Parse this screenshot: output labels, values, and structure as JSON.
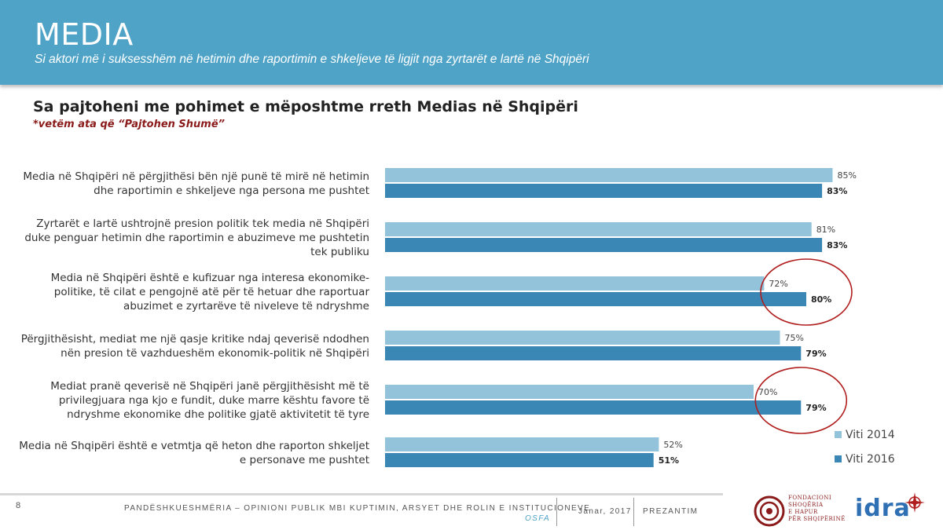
{
  "header": {
    "title": "MEDIA",
    "subtitle": "Si aktori më i suksesshëm në hetimin dhe raportimin e shkeljeve të ligjit nga zyrtarët e lartë në Shqipëri"
  },
  "colors": {
    "header_bg": "#4fa3c7",
    "series_2014": "#93c3db",
    "series_2016": "#3a87b5",
    "highlight": "#b01e1e"
  },
  "chart_data": {
    "type": "bar",
    "orientation": "horizontal",
    "title": "Sa pajtoheni me pohimet e mëposhtme rreth Medias në Shqipëri",
    "subtitle": "*vetëm ata që “Pajtohen Shumë”",
    "categories": [
      [
        "Media në Shqipëri në përgjithësi bën një punë të mirë në hetimin",
        "dhe raportimin e shkeljeve nga persona me pushtet"
      ],
      [
        "Zyrtarët e lartë ushtrojnë presion politik tek media në Shqipëri",
        "duke penguar hetimin dhe raportimin e abuzimeve me pushtetin",
        "tek publiku"
      ],
      [
        "Media në Shqipëri është e kufizuar nga interesa ekonomike-",
        "politike, të cilat e pengojnë atë për të hetuar dhe raportuar",
        "abuzimet e zyrtarëve të niveleve të ndryshme"
      ],
      [
        "Përgjithësisht, mediat me një qasje kritike ndaj qeverisë ndodhen",
        "nën presion të vazhdueshëm ekonomik-politik në Shqipëri"
      ],
      [
        "Mediat pranë qeverisë në Shqipëri janë përgjithësisht më të",
        "privilegjuara nga kjo e fundit, duke marre kështu favore të",
        "ndryshme ekonomike dhe politike gjatë aktivitetit të tyre"
      ],
      [
        "Media në Shqipëri është e vetmtja që heton dhe raporton shkeljet",
        "e personave me pushtet"
      ]
    ],
    "series": [
      {
        "name": "Viti 2014",
        "values": [
          85,
          81,
          72,
          75,
          70,
          52
        ]
      },
      {
        "name": "Viti 2016",
        "values": [
          83,
          83,
          80,
          79,
          79,
          51
        ]
      }
    ],
    "value_format": "{v}%",
    "xlim": [
      0,
      100
    ],
    "highlighted_categories": [
      2,
      4
    ],
    "legend": "bottom-right",
    "grid": false
  },
  "footer": {
    "page_number": "8",
    "text": "PANDËSHKUESHMËRIA – OPINIONI PUBLIK MBI KUPTIMIN, ARSYET DHE ROLIN E INSTITUCIONEVE",
    "org": "OSFA",
    "date": "Janar, 2017",
    "section": "PREZANTIM",
    "logo1_text": [
      "FONDACIONI",
      "SHOQËRIA",
      "E HAPUR",
      "PËR SHQIPËRINË"
    ],
    "logo2_text": "idra"
  }
}
